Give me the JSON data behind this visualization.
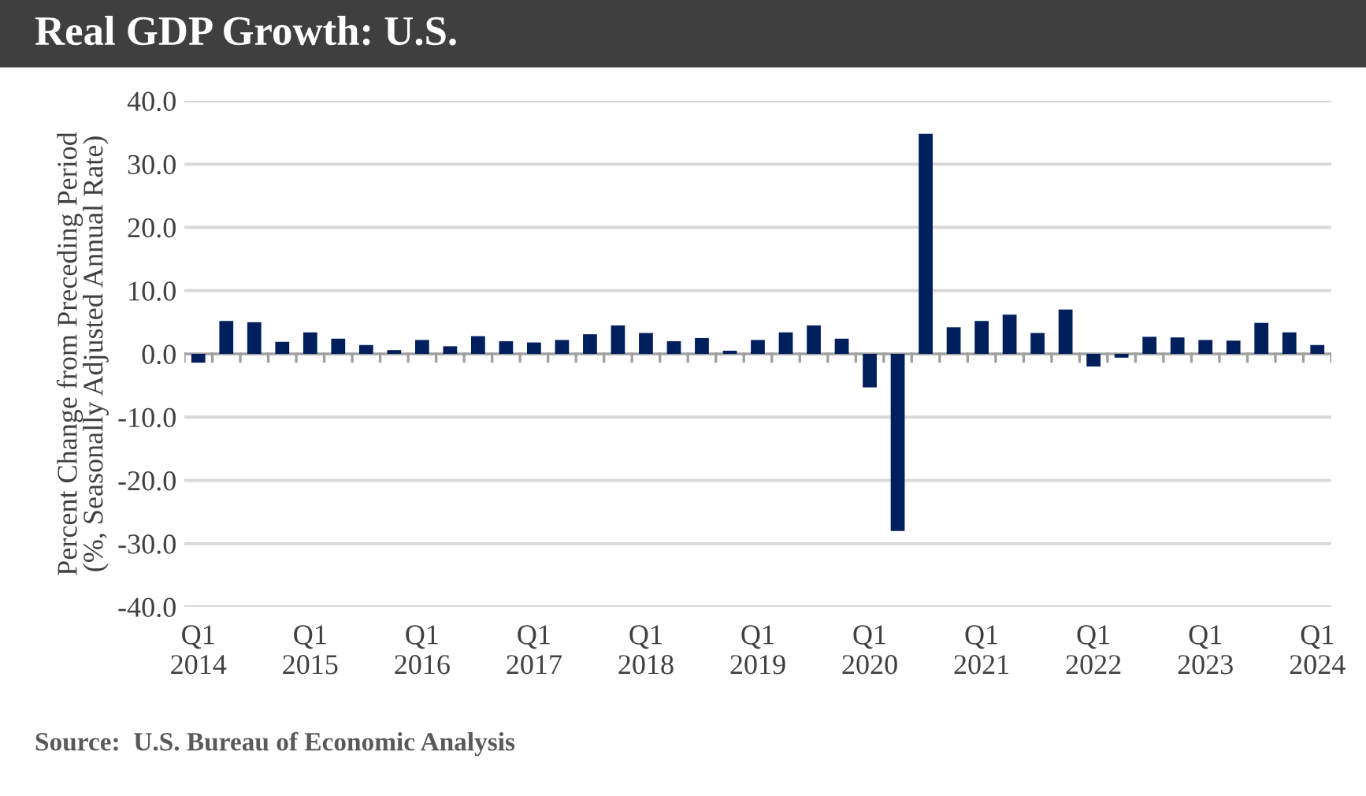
{
  "chart_data": {
    "type": "bar",
    "title": "Real GDP Growth: U.S.",
    "ylabel": "Percent Change from Preceding Period\n(%, Seasonally Adjusted Annual Rate)",
    "categories": [
      "Q1\n2014",
      null,
      null,
      null,
      "Q1\n2015",
      null,
      null,
      null,
      "Q1\n2016",
      null,
      null,
      null,
      "Q1\n2017",
      null,
      null,
      null,
      "Q1\n2018",
      null,
      null,
      null,
      "Q1\n2019",
      null,
      null,
      null,
      "Q1\n2020",
      null,
      null,
      null,
      "Q1\n2021",
      null,
      null,
      null,
      "Q1\n2022",
      null,
      null,
      null,
      "Q1\n2023",
      null,
      null,
      null,
      "Q1\n2024"
    ],
    "values": [
      -1.4,
      5.2,
      5.0,
      1.9,
      3.4,
      2.4,
      1.4,
      0.6,
      2.2,
      1.2,
      2.8,
      2.0,
      1.8,
      2.2,
      3.1,
      4.5,
      3.3,
      2.0,
      2.5,
      0.5,
      2.2,
      3.4,
      4.5,
      2.4,
      -5.3,
      -28.0,
      34.8,
      4.2,
      5.2,
      6.2,
      3.3,
      7.0,
      -2.0,
      -0.6,
      2.7,
      2.6,
      2.2,
      2.1,
      4.9,
      3.4,
      1.4
    ],
    "color": "#001f5c",
    "ylim": [
      -40,
      40
    ],
    "yticks": [
      {
        "value": -40,
        "label": "-40.0"
      },
      {
        "value": -30,
        "label": "-30.0"
      },
      {
        "value": -20,
        "label": "-20.0"
      },
      {
        "value": -10,
        "label": "-10.0"
      },
      {
        "value": 0,
        "label": "0.0"
      },
      {
        "value": 10,
        "label": "10.0"
      },
      {
        "value": 20,
        "label": "20.0"
      },
      {
        "value": 30,
        "label": "30.0"
      },
      {
        "value": 40,
        "label": "40.0"
      }
    ],
    "grid": "y",
    "annotations": [
      "Source:  U.S. Bureau of Economic Analysis"
    ]
  }
}
